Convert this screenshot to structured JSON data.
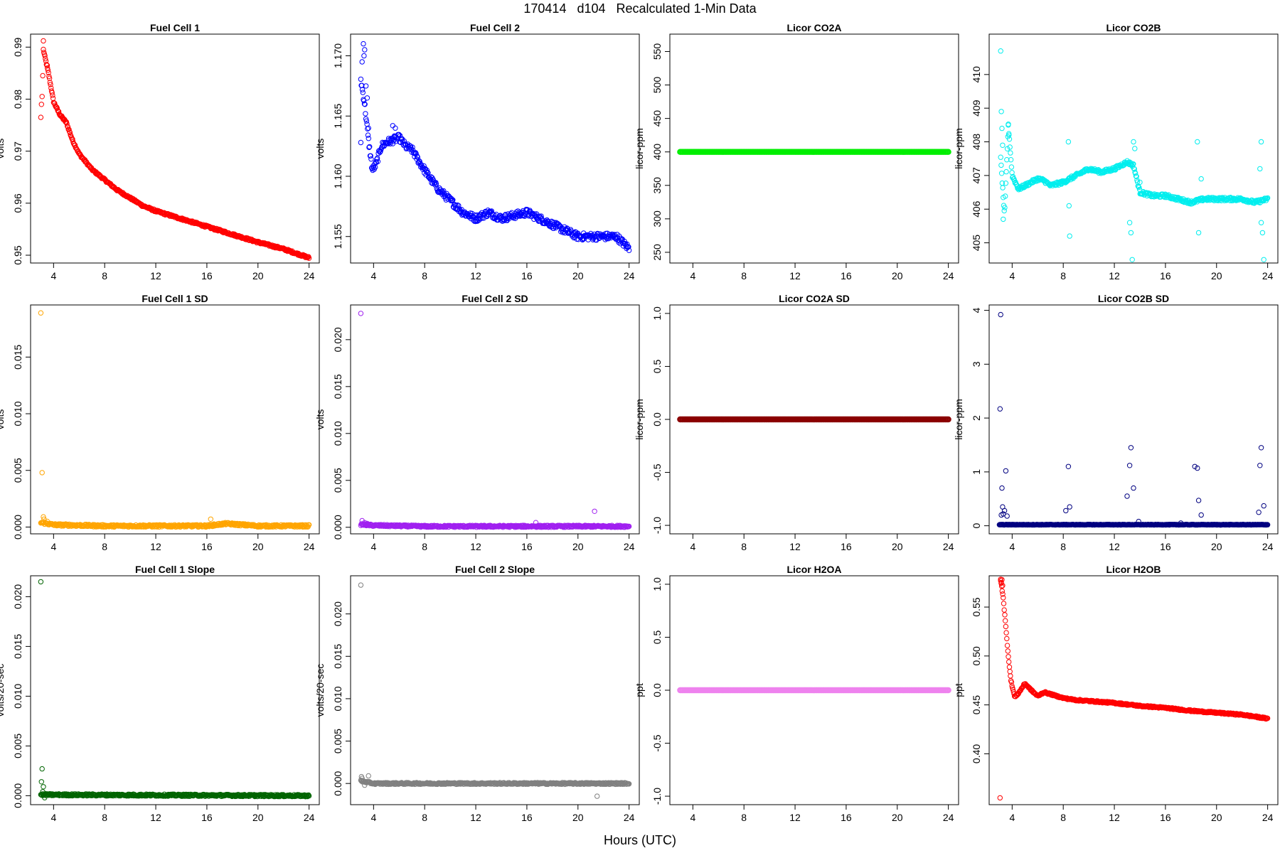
{
  "title": "170414   d104   Recalculated 1-Min Data",
  "xlabel": "Hours (UTC)",
  "chart_data": [
    {
      "type": "scatter",
      "title": "Fuel Cell 1",
      "ylabel": "volts",
      "color": "#ff0000",
      "xlim": [
        2.2,
        24.8
      ],
      "ylim": [
        0.9485,
        0.9925
      ],
      "xticks": [
        4,
        8,
        12,
        16,
        20,
        24
      ],
      "yticks": [
        0.95,
        0.96,
        0.97,
        0.98,
        0.99
      ],
      "ytick_labels": [
        "0.95",
        "0.96",
        "0.97",
        "0.98",
        "0.99"
      ],
      "curve": [
        [
          3.2,
          0.9895
        ],
        [
          3.6,
          0.985
        ],
        [
          4.0,
          0.9795
        ],
        [
          4.5,
          0.977
        ],
        [
          5.0,
          0.9755
        ],
        [
          5.5,
          0.972
        ],
        [
          6.0,
          0.9695
        ],
        [
          7.0,
          0.9665
        ],
        [
          8.0,
          0.9645
        ],
        [
          9.0,
          0.9625
        ],
        [
          10.0,
          0.961
        ],
        [
          11.0,
          0.9595
        ],
        [
          12.0,
          0.9585
        ],
        [
          14.0,
          0.957
        ],
        [
          16.0,
          0.9555
        ],
        [
          18.0,
          0.954
        ],
        [
          20.0,
          0.9525
        ],
        [
          22.0,
          0.9512
        ],
        [
          24.0,
          0.9495
        ]
      ],
      "outliers": [
        [
          3.0,
          0.9765
        ],
        [
          3.05,
          0.979
        ],
        [
          3.1,
          0.9805
        ],
        [
          3.15,
          0.9845
        ],
        [
          3.2,
          0.9912
        ],
        [
          3.5,
          0.9865
        ]
      ],
      "noise": 0.0002
    },
    {
      "type": "scatter",
      "title": "Fuel Cell 2",
      "ylabel": "volts",
      "color": "#0000ff",
      "xlim": [
        2.2,
        24.8
      ],
      "ylim": [
        1.1528,
        1.1718
      ],
      "xticks": [
        4,
        8,
        12,
        16,
        20,
        24
      ],
      "yticks": [
        1.155,
        1.16,
        1.165,
        1.17
      ],
      "ytick_labels": [
        "1.155",
        "1.160",
        "1.165",
        "1.170"
      ],
      "curve": [
        [
          3.0,
          1.168
        ],
        [
          3.3,
          1.166
        ],
        [
          3.6,
          1.163
        ],
        [
          3.9,
          1.1605
        ],
        [
          4.2,
          1.161
        ],
        [
          4.6,
          1.1625
        ],
        [
          5.0,
          1.1628
        ],
        [
          5.5,
          1.163
        ],
        [
          6.0,
          1.1632
        ],
        [
          6.5,
          1.1625
        ],
        [
          7.0,
          1.1622
        ],
        [
          8.0,
          1.1605
        ],
        [
          9.0,
          1.159
        ],
        [
          10.0,
          1.158
        ],
        [
          11.0,
          1.157
        ],
        [
          12.0,
          1.1565
        ],
        [
          13.0,
          1.157
        ],
        [
          14.0,
          1.1565
        ],
        [
          16.0,
          1.157
        ],
        [
          18.0,
          1.156
        ],
        [
          20.0,
          1.155
        ],
        [
          22.0,
          1.155
        ],
        [
          23.0,
          1.155
        ],
        [
          24.0,
          1.154
        ]
      ],
      "outliers": [
        [
          3.2,
          1.171
        ],
        [
          3.25,
          1.17
        ],
        [
          3.3,
          1.1705
        ],
        [
          3.1,
          1.1695
        ],
        [
          3.4,
          1.1675
        ],
        [
          3.5,
          1.1665
        ],
        [
          3.0,
          1.1628
        ],
        [
          3.6,
          1.164
        ],
        [
          5.5,
          1.1642
        ],
        [
          5.7,
          1.164
        ]
      ],
      "noise": 0.0003
    },
    {
      "type": "scatter",
      "title": "Licor CO2A",
      "ylabel": "licor-ppm",
      "color": "#00ee00",
      "xlim": [
        2.2,
        24.8
      ],
      "ylim": [
        234,
        576
      ],
      "xticks": [
        4,
        8,
        12,
        16,
        20,
        24
      ],
      "yticks": [
        250,
        300,
        350,
        400,
        450,
        500,
        550
      ],
      "ytick_labels": [
        "250",
        "300",
        "350",
        "400",
        "450",
        "500",
        "550"
      ],
      "curve": [
        [
          3.0,
          400
        ],
        [
          24.0,
          400
        ]
      ],
      "outliers": [],
      "noise": 0,
      "thick": true
    },
    {
      "type": "scatter",
      "title": "Licor CO2B",
      "ylabel": "licor-ppm",
      "color": "#00eeee",
      "xlim": [
        2.2,
        24.8
      ],
      "ylim": [
        404.4,
        411.2
      ],
      "xticks": [
        4,
        8,
        12,
        16,
        20,
        24
      ],
      "yticks": [
        405,
        406,
        407,
        408,
        409,
        410
      ],
      "ytick_labels": [
        "405",
        "406",
        "407",
        "408",
        "409",
        "410"
      ],
      "curve": [
        [
          3.1,
          407.5
        ],
        [
          3.4,
          405.8
        ],
        [
          3.7,
          408.5
        ],
        [
          4.0,
          407.0
        ],
        [
          4.5,
          406.6
        ],
        [
          5.0,
          406.7
        ],
        [
          5.5,
          406.8
        ],
        [
          6.0,
          406.9
        ],
        [
          6.5,
          406.85
        ],
        [
          7.0,
          406.7
        ],
        [
          8.0,
          406.8
        ],
        [
          9.0,
          407.0
        ],
        [
          10.0,
          407.2
        ],
        [
          11.0,
          407.1
        ],
        [
          12.0,
          407.2
        ],
        [
          13.0,
          407.4
        ],
        [
          13.5,
          407.3
        ],
        [
          14.0,
          406.5
        ],
        [
          15.0,
          406.4
        ],
        [
          16.0,
          406.4
        ],
        [
          17.0,
          406.3
        ],
        [
          18.0,
          406.2
        ],
        [
          19.0,
          406.3
        ],
        [
          20.0,
          406.3
        ],
        [
          22.0,
          406.3
        ],
        [
          23.0,
          406.2
        ],
        [
          24.0,
          406.3
        ]
      ],
      "outliers": [
        [
          3.1,
          410.7
        ],
        [
          3.15,
          408.9
        ],
        [
          3.2,
          408.4
        ],
        [
          3.25,
          407.9
        ],
        [
          3.3,
          405.7
        ],
        [
          3.7,
          408.5
        ],
        [
          3.75,
          408.2
        ],
        [
          8.4,
          408.0
        ],
        [
          8.5,
          405.2
        ],
        [
          8.45,
          406.1
        ],
        [
          13.2,
          405.6
        ],
        [
          13.3,
          405.3
        ],
        [
          13.4,
          404.5
        ],
        [
          13.5,
          408.0
        ],
        [
          13.6,
          407.8
        ],
        [
          14.0,
          406.8
        ],
        [
          18.5,
          408.0
        ],
        [
          18.6,
          405.3
        ],
        [
          18.8,
          406.9
        ],
        [
          23.5,
          408.0
        ],
        [
          23.6,
          405.3
        ],
        [
          23.7,
          404.5
        ],
        [
          23.4,
          407.2
        ],
        [
          23.5,
          405.6
        ]
      ],
      "noise": 0.05
    },
    {
      "type": "scatter",
      "title": "Fuel Cell 1 SD",
      "ylabel": "volts",
      "color": "#ffa500",
      "xlim": [
        2.2,
        24.8
      ],
      "ylim": [
        -0.0006,
        0.0196
      ],
      "xticks": [
        4,
        8,
        12,
        16,
        20,
        24
      ],
      "yticks": [
        0,
        0.005,
        0.01,
        0.015
      ],
      "ytick_labels": [
        "0.000",
        "0.005",
        "0.010",
        "0.015"
      ],
      "curve": [
        [
          3.0,
          0.0004
        ],
        [
          4.0,
          0.0002
        ],
        [
          8.0,
          0.0001
        ],
        [
          12.0,
          0.0001
        ],
        [
          16.0,
          0.0001
        ],
        [
          17.5,
          0.0003
        ],
        [
          20.0,
          0.0001
        ],
        [
          24.0,
          0.0001
        ]
      ],
      "outliers": [
        [
          3.0,
          0.0189
        ],
        [
          3.1,
          0.0048
        ],
        [
          3.2,
          0.0009
        ],
        [
          3.25,
          0.0007
        ],
        [
          3.5,
          0.0005
        ],
        [
          16.3,
          0.0007
        ]
      ],
      "noise": 0.0001
    },
    {
      "type": "scatter",
      "title": "Fuel Cell 2 SD",
      "ylabel": "volts",
      "color": "#a020f0",
      "xlim": [
        2.2,
        24.8
      ],
      "ylim": [
        -0.0007,
        0.0237
      ],
      "xticks": [
        4,
        8,
        12,
        16,
        20,
        24
      ],
      "yticks": [
        0,
        0.005,
        0.01,
        0.015,
        0.02
      ],
      "ytick_labels": [
        "0.000",
        "0.005",
        "0.010",
        "0.015",
        "0.020"
      ],
      "curve": [
        [
          3.0,
          0.0003
        ],
        [
          4.0,
          0.0002
        ],
        [
          8.0,
          0.0001
        ],
        [
          24.0,
          0.0001
        ]
      ],
      "outliers": [
        [
          3.0,
          0.0228
        ],
        [
          3.1,
          0.0007
        ],
        [
          3.3,
          0.0005
        ],
        [
          3.5,
          0.0004
        ],
        [
          16.7,
          0.0005
        ],
        [
          21.3,
          0.0017
        ]
      ],
      "noise": 0.0001
    },
    {
      "type": "scatter",
      "title": "Licor CO2A SD",
      "ylabel": "licor-ppm",
      "color": "#8b0000",
      "xlim": [
        2.2,
        24.8
      ],
      "ylim": [
        -1.08,
        1.08
      ],
      "xticks": [
        4,
        8,
        12,
        16,
        20,
        24
      ],
      "yticks": [
        -1,
        -0.5,
        0,
        0.5,
        1
      ],
      "ytick_labels": [
        "-1.0",
        "-0.5",
        "0.0",
        "0.5",
        "1.0"
      ],
      "curve": [
        [
          3.0,
          0
        ],
        [
          24.0,
          0
        ]
      ],
      "outliers": [],
      "noise": 0,
      "thick": true
    },
    {
      "type": "scatter",
      "title": "Licor CO2B SD",
      "ylabel": "licor-ppm",
      "color": "#000080",
      "xlim": [
        2.2,
        24.8
      ],
      "ylim": [
        -0.15,
        4.1
      ],
      "xticks": [
        4,
        8,
        12,
        16,
        20,
        24
      ],
      "yticks": [
        0,
        1,
        2,
        3,
        4
      ],
      "ytick_labels": [
        "0",
        "1",
        "2",
        "3",
        "4"
      ],
      "curve": [
        [
          3.0,
          0.02
        ],
        [
          24.0,
          0.02
        ]
      ],
      "outliers": [
        [
          3.1,
          3.92
        ],
        [
          3.05,
          2.17
        ],
        [
          3.2,
          0.7
        ],
        [
          3.25,
          0.35
        ],
        [
          3.3,
          0.22
        ],
        [
          3.15,
          0.2
        ],
        [
          3.5,
          1.02
        ],
        [
          3.6,
          0.18
        ],
        [
          3.4,
          0.28
        ],
        [
          8.2,
          0.28
        ],
        [
          8.4,
          1.1
        ],
        [
          8.5,
          0.35
        ],
        [
          13.0,
          0.55
        ],
        [
          13.2,
          1.12
        ],
        [
          13.3,
          1.45
        ],
        [
          13.5,
          0.7
        ],
        [
          13.9,
          0.08
        ],
        [
          17.2,
          0.05
        ],
        [
          18.3,
          1.1
        ],
        [
          18.5,
          1.07
        ],
        [
          18.6,
          0.47
        ],
        [
          18.8,
          0.2
        ],
        [
          23.3,
          0.25
        ],
        [
          23.4,
          1.12
        ],
        [
          23.5,
          1.45
        ],
        [
          23.7,
          0.37
        ]
      ],
      "noise": 0.005
    },
    {
      "type": "scatter",
      "title": "Fuel Cell 1 Slope",
      "ylabel": "volts/20-sec",
      "color": "#006400",
      "xlim": [
        2.2,
        24.8
      ],
      "ylim": [
        -0.0009,
        0.0221
      ],
      "xticks": [
        4,
        8,
        12,
        16,
        20,
        24
      ],
      "yticks": [
        0,
        0.005,
        0.01,
        0.015,
        0.02
      ],
      "ytick_labels": [
        "0.000",
        "0.005",
        "0.010",
        "0.015",
        "0.020"
      ],
      "curve": [
        [
          3.0,
          0.0001
        ],
        [
          24.0,
          0.0
        ]
      ],
      "outliers": [
        [
          3.0,
          0.0215
        ],
        [
          3.1,
          0.0027
        ],
        [
          3.05,
          0.0014
        ],
        [
          3.2,
          0.0009
        ],
        [
          3.15,
          0.0004
        ],
        [
          3.3,
          -0.0002
        ]
      ],
      "noise": 0.0001
    },
    {
      "type": "scatter",
      "title": "Fuel Cell 2 Slope",
      "ylabel": "volts/20-sec",
      "color": "#808080",
      "xlim": [
        2.2,
        24.8
      ],
      "ylim": [
        -0.0025,
        0.0245
      ],
      "xticks": [
        4,
        8,
        12,
        16,
        20,
        24
      ],
      "yticks": [
        0,
        0.005,
        0.01,
        0.015,
        0.02
      ],
      "ytick_labels": [
        "0.000",
        "0.005",
        "0.010",
        "0.015",
        "0.020"
      ],
      "curve": [
        [
          3.0,
          0.0003
        ],
        [
          4.0,
          0.0
        ],
        [
          24.0,
          0.0
        ]
      ],
      "outliers": [
        [
          3.0,
          0.0234
        ],
        [
          3.05,
          0.0008
        ],
        [
          3.1,
          0.0006
        ],
        [
          3.6,
          0.0009
        ],
        [
          3.3,
          -0.0002
        ],
        [
          21.5,
          -0.0015
        ]
      ],
      "noise": 0.0001
    },
    {
      "type": "scatter",
      "title": "Licor H2OA",
      "ylabel": "ppt",
      "color": "#ee82ee",
      "xlim": [
        2.2,
        24.8
      ],
      "ylim": [
        -1.08,
        1.08
      ],
      "xticks": [
        4,
        8,
        12,
        16,
        20,
        24
      ],
      "yticks": [
        -1,
        -0.5,
        0,
        0.5,
        1
      ],
      "ytick_labels": [
        "-1.0",
        "-0.5",
        "0.0",
        "0.5",
        "1.0"
      ],
      "curve": [
        [
          3.0,
          0
        ],
        [
          24.0,
          0
        ]
      ],
      "outliers": [],
      "noise": 0,
      "thick": true
    },
    {
      "type": "scatter",
      "title": "Licor H2OB",
      "ylabel": "ppt",
      "color": "#ff0000",
      "xlim": [
        2.2,
        24.8
      ],
      "ylim": [
        0.348,
        0.582
      ],
      "xticks": [
        4,
        8,
        12,
        16,
        20,
        24
      ],
      "yticks": [
        0.4,
        0.45,
        0.5,
        0.55
      ],
      "ytick_labels": [
        "0.40",
        "0.45",
        "0.50",
        "0.55"
      ],
      "curve": [
        [
          3.1,
          0.578
        ],
        [
          3.3,
          0.56
        ],
        [
          3.5,
          0.53
        ],
        [
          3.7,
          0.5
        ],
        [
          3.9,
          0.475
        ],
        [
          4.2,
          0.458
        ],
        [
          4.5,
          0.462
        ],
        [
          5.0,
          0.472
        ],
        [
          5.5,
          0.465
        ],
        [
          6.0,
          0.459
        ],
        [
          6.5,
          0.463
        ],
        [
          7.0,
          0.461
        ],
        [
          8.0,
          0.457
        ],
        [
          9.0,
          0.455
        ],
        [
          10.0,
          0.454
        ],
        [
          12.0,
          0.452
        ],
        [
          14.0,
          0.449
        ],
        [
          16.0,
          0.447
        ],
        [
          18.0,
          0.444
        ],
        [
          20.0,
          0.442
        ],
        [
          22.0,
          0.44
        ],
        [
          23.0,
          0.438
        ],
        [
          24.0,
          0.436
        ]
      ],
      "outliers": [
        [
          3.05,
          0.355
        ],
        [
          3.1,
          0.577
        ],
        [
          3.15,
          0.575
        ],
        [
          3.2,
          0.578
        ],
        [
          3.25,
          0.572
        ]
      ],
      "noise": 0.0008
    }
  ]
}
